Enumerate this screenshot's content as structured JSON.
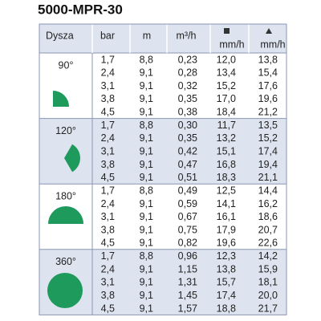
{
  "title": "5000-MPR-30",
  "table": {
    "header": [
      "Dysza",
      "bar",
      "m",
      "m³/h",
      "mm/h",
      "mm/h"
    ],
    "groups": [
      {
        "label": "90°",
        "rows": [
          [
            "1,7",
            "8,8",
            "0,23",
            "12,0",
            "13,8"
          ],
          [
            "2,4",
            "9,1",
            "0,28",
            "13,4",
            "15,4"
          ],
          [
            "3,1",
            "9,1",
            "0,32",
            "15,2",
            "17,6"
          ],
          [
            "3,8",
            "9,1",
            "0,35",
            "17,0",
            "19,6"
          ],
          [
            "4,5",
            "9,1",
            "0,38",
            "18,4",
            "21,2"
          ]
        ]
      },
      {
        "label": "120°",
        "rows": [
          [
            "1,7",
            "8,8",
            "0,30",
            "11,7",
            "13,5"
          ],
          [
            "2,4",
            "9,1",
            "0,35",
            "13,2",
            "15,2"
          ],
          [
            "3,1",
            "9,1",
            "0,42",
            "15,1",
            "17,4"
          ],
          [
            "3,8",
            "9,1",
            "0,47",
            "16,8",
            "19,4"
          ],
          [
            "4,5",
            "9,1",
            "0,51",
            "18,3",
            "21,1"
          ]
        ]
      },
      {
        "label": "180°",
        "rows": [
          [
            "1,7",
            "8,8",
            "0,49",
            "12,5",
            "14,4"
          ],
          [
            "2,4",
            "9,1",
            "0,59",
            "14,1",
            "16,2"
          ],
          [
            "3,1",
            "9,1",
            "0,67",
            "16,1",
            "18,6"
          ],
          [
            "3,8",
            "9,1",
            "0,75",
            "17,9",
            "20,7"
          ],
          [
            "4,5",
            "9,1",
            "0,82",
            "19,6",
            "22,6"
          ]
        ]
      },
      {
        "label": "360°",
        "rows": [
          [
            "1,7",
            "8,8",
            "0,96",
            "12,3",
            "14,2"
          ],
          [
            "2,4",
            "9,1",
            "1,15",
            "13,8",
            "15,9"
          ],
          [
            "3,1",
            "9,1",
            "1,31",
            "15,7",
            "18,1"
          ],
          [
            "3,8",
            "9,1",
            "1,45",
            "17,4",
            "20,0"
          ],
          [
            "4,5",
            "9,1",
            "1,57",
            "18,8",
            "21,7"
          ]
        ]
      }
    ]
  }
}
